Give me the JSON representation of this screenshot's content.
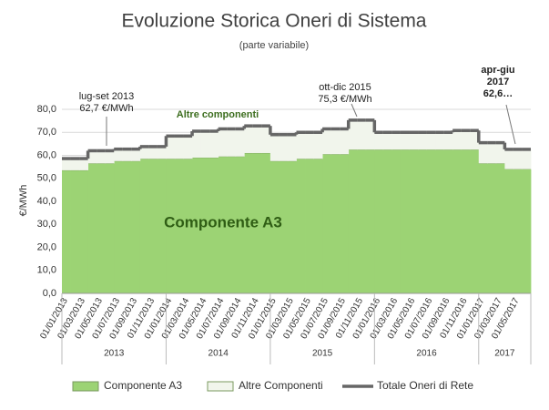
{
  "chart_data": {
    "type": "stacked-step-area",
    "title": "Evoluzione Storica Oneri di Sistema",
    "subtitle": "(parte variabile)",
    "y_label": "€/MWh",
    "categories": [
      "01/01/2013",
      null,
      "01/03/2013",
      null,
      "01/05/2013",
      null,
      "01/07/2013",
      null,
      "01/09/2013",
      null,
      "01/11/2013",
      null,
      "01/01/2014",
      null,
      "01/03/2014",
      null,
      "01/05/2014",
      null,
      "01/07/2014",
      null,
      "01/09/2014",
      null,
      "01/11/2014",
      null,
      "01/01/2015",
      null,
      "01/03/2015",
      null,
      "01/05/2015",
      null,
      "01/07/2015",
      null,
      "01/09/2015",
      null,
      "01/11/2015",
      null,
      "01/01/2016",
      null,
      "01/03/2016",
      null,
      "01/05/2016",
      null,
      "01/07/2016",
      null,
      "01/09/2016",
      null,
      "01/11/2016",
      null,
      "01/01/2017",
      null,
      "01/03/2017",
      null,
      "01/05/2017",
      null
    ],
    "x_groups": [
      {
        "label": "2013",
        "start": 0,
        "end": 11
      },
      {
        "label": "2014",
        "start": 12,
        "end": 23
      },
      {
        "label": "2015",
        "start": 24,
        "end": 35
      },
      {
        "label": "2016",
        "start": 36,
        "end": 47
      },
      {
        "label": "2017",
        "start": 48,
        "end": 53
      }
    ],
    "series": [
      {
        "name": "Componente A3",
        "color": "#9cd374",
        "stack": true,
        "values": [
          53.5,
          53.5,
          53.5,
          56.5,
          56.5,
          56.5,
          57.5,
          57.5,
          57.5,
          58.5,
          58.5,
          58.5,
          58.5,
          58.5,
          58.5,
          59.0,
          59.0,
          59.0,
          59.5,
          59.5,
          59.5,
          61.0,
          61.0,
          61.0,
          57.5,
          57.5,
          57.5,
          58.5,
          58.5,
          58.5,
          60.5,
          60.5,
          60.5,
          62.5,
          62.5,
          62.5,
          62.5,
          62.5,
          62.5,
          62.5,
          62.5,
          62.5,
          62.5,
          62.5,
          62.5,
          62.5,
          62.5,
          62.5,
          56.5,
          56.5,
          56.5,
          54.0,
          54.0,
          54.0
        ]
      },
      {
        "name": "Altre Componenti",
        "color": "#f1f5ec",
        "stack": true,
        "values": [
          5.1,
          5.1,
          5.1,
          5.5,
          5.5,
          5.5,
          5.2,
          5.2,
          5.2,
          5.3,
          5.3,
          5.3,
          9.9,
          9.9,
          9.9,
          11.5,
          11.5,
          11.5,
          12.0,
          12.0,
          12.0,
          11.8,
          11.8,
          11.8,
          11.5,
          11.5,
          11.5,
          11.5,
          11.5,
          11.5,
          11.0,
          11.0,
          11.0,
          12.8,
          12.8,
          12.8,
          7.5,
          7.5,
          7.5,
          7.5,
          7.5,
          7.5,
          7.5,
          7.5,
          7.5,
          8.3,
          8.3,
          8.3,
          9.0,
          9.0,
          9.0,
          8.6,
          8.6,
          8.6
        ]
      },
      {
        "name": "Totale Oneri di Rete",
        "color": "#666666",
        "stack": false,
        "values": [
          58.6,
          58.6,
          58.6,
          62.0,
          62.0,
          62.0,
          62.7,
          62.7,
          62.7,
          63.8,
          63.8,
          63.8,
          68.4,
          68.4,
          68.4,
          70.5,
          70.5,
          70.5,
          71.5,
          71.5,
          71.5,
          72.8,
          72.8,
          72.8,
          69.0,
          69.0,
          69.0,
          70.0,
          70.0,
          70.0,
          71.5,
          71.5,
          71.5,
          75.3,
          75.3,
          75.3,
          70.0,
          70.0,
          70.0,
          70.0,
          70.0,
          70.0,
          70.0,
          70.0,
          70.0,
          70.8,
          70.8,
          70.8,
          65.5,
          65.5,
          65.5,
          62.6,
          62.6,
          62.6
        ]
      }
    ],
    "ylim": [
      0,
      80
    ],
    "yticks": [
      {
        "value": 0,
        "label": "0,0"
      },
      {
        "value": 10,
        "label": "10,0"
      },
      {
        "value": 20,
        "label": "20,0"
      },
      {
        "value": 30,
        "label": "30,0"
      },
      {
        "value": 40,
        "label": "40,0"
      },
      {
        "value": 50,
        "label": "50,0"
      },
      {
        "value": 60,
        "label": "60,0"
      },
      {
        "value": 70,
        "label": "70,0"
      },
      {
        "value": 80,
        "label": "80,0"
      }
    ],
    "grid": true,
    "legend": "bottom",
    "annotations": [
      {
        "lines": [
          "lug-set 2013",
          "62,7 €/MWh"
        ]
      },
      {
        "lines": [
          "ott-dic 2015",
          "75,3  €/MWh"
        ]
      },
      {
        "lines": [
          "apr-giu",
          "2017",
          "62,6…"
        ]
      },
      {
        "lines": [
          "Altre componenti"
        ]
      },
      {
        "lines": [
          "Componente  A3"
        ]
      }
    ]
  }
}
